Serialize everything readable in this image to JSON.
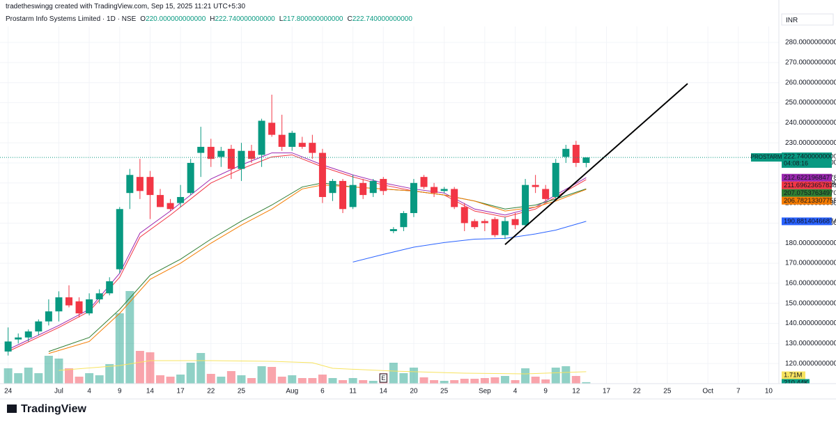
{
  "header": {
    "credit": "tradetheswingg created with TradingView.com, Sep 15, 2025 11:21 UTC+5:30",
    "symbol": "Prostarm Info Systems Limited · 1D · NSE",
    "ohlc": [
      {
        "key": "O",
        "value": "220.000000000000"
      },
      {
        "key": "H",
        "value": "222.740000000000"
      },
      {
        "key": "L",
        "value": "217.800000000000"
      },
      {
        "key": "C",
        "value": "222.740000000000"
      }
    ]
  },
  "currency": "INR",
  "logo": "TradingView",
  "earnings_marker": {
    "x": 37,
    "label": "E"
  },
  "chart_data": {
    "type": "candlestick",
    "ylim": [
      110,
      288
    ],
    "xlim": [
      -0.8,
      76
    ],
    "yticks": [
      {
        "value": 120,
        "label": "120.000000000000"
      },
      {
        "value": 130,
        "label": "130.000000000000"
      },
      {
        "value": 140,
        "label": "140.000000000000"
      },
      {
        "value": 150,
        "label": "150.000000000000"
      },
      {
        "value": 160,
        "label": "160.000000000000"
      },
      {
        "value": 170,
        "label": "170.000000000000"
      },
      {
        "value": 180,
        "label": "180.000000000000"
      },
      {
        "value": 190,
        "label": "190.000000000000"
      },
      {
        "value": 200,
        "label": "200.000000000000"
      },
      {
        "value": 210,
        "label": "210.000000000000"
      },
      {
        "value": 220,
        "label": "220.000000000000"
      },
      {
        "value": 230,
        "label": "230.000000000000"
      },
      {
        "value": 240,
        "label": "240.000000000000"
      },
      {
        "value": 250,
        "label": "250.000000000000"
      },
      {
        "value": 260,
        "label": "260.000000000000"
      },
      {
        "value": 270,
        "label": "270.000000000000"
      },
      {
        "value": 280,
        "label": "280.000000000000"
      }
    ],
    "xticks": [
      {
        "value": 0,
        "label": "24"
      },
      {
        "value": 5,
        "label": "Jul"
      },
      {
        "value": 8,
        "label": "4"
      },
      {
        "value": 11,
        "label": "9"
      },
      {
        "value": 14,
        "label": "14"
      },
      {
        "value": 17,
        "label": "17"
      },
      {
        "value": 20,
        "label": "22"
      },
      {
        "value": 23,
        "label": "25"
      },
      {
        "value": 28,
        "label": "Aug"
      },
      {
        "value": 31,
        "label": "6"
      },
      {
        "value": 34,
        "label": "11"
      },
      {
        "value": 37,
        "label": "14"
      },
      {
        "value": 40,
        "label": "20"
      },
      {
        "value": 43,
        "label": "25"
      },
      {
        "value": 47,
        "label": "Sep"
      },
      {
        "value": 50,
        "label": "4"
      },
      {
        "value": 53,
        "label": "9"
      },
      {
        "value": 56,
        "label": "12"
      },
      {
        "value": 59,
        "label": "17"
      },
      {
        "value": 62,
        "label": "22"
      },
      {
        "value": 65,
        "label": "25"
      },
      {
        "value": 69,
        "label": "Oct"
      },
      {
        "value": 72,
        "label": "7"
      },
      {
        "value": 75,
        "label": "10"
      }
    ],
    "grid": true,
    "up_color": "#089981",
    "down_color": "#f23645",
    "candles": {
      "open": [
        126,
        132,
        133,
        136,
        141,
        146,
        153,
        151,
        145,
        152,
        155,
        167,
        205,
        213,
        213,
        204,
        200,
        200,
        205,
        225,
        228,
        223,
        227,
        217,
        226,
        224,
        240,
        234,
        228,
        230,
        230,
        225,
        205,
        211,
        198,
        210,
        205,
        212,
        186,
        188,
        195,
        213,
        208,
        206,
        207,
        198,
        191,
        191,
        192,
        184,
        192,
        189,
        209,
        207,
        203,
        223,
        229,
        220
      ],
      "high": [
        138,
        135,
        137,
        142,
        152,
        156,
        159,
        153,
        155,
        157,
        163,
        198,
        217,
        222,
        216,
        207,
        202,
        209,
        222,
        238,
        232,
        228,
        229,
        230,
        229,
        242,
        254,
        244,
        236,
        233,
        234,
        227,
        212,
        212,
        214,
        212,
        212,
        213,
        188,
        196,
        212,
        214,
        210,
        208,
        208,
        200,
        192,
        192,
        193,
        193,
        195,
        212,
        214,
        209,
        222,
        229,
        231,
        222.74
      ],
      "low": [
        124,
        130,
        131,
        134,
        139,
        141,
        148,
        143,
        144,
        150,
        154,
        165,
        197,
        202,
        192,
        198,
        196,
        198,
        204,
        213,
        218,
        218,
        212,
        211,
        220,
        218,
        233,
        226,
        226,
        227,
        222,
        200,
        201,
        195,
        197,
        202,
        203,
        204,
        185,
        186,
        193,
        207,
        203,
        205,
        197,
        186,
        187,
        186,
        183,
        182,
        187,
        188,
        205,
        201,
        202,
        220,
        218,
        217.8
      ],
      "close": [
        131,
        133,
        136,
        141,
        146,
        153,
        149,
        145,
        152,
        155,
        161,
        197,
        214,
        206,
        204,
        198,
        197,
        203,
        220,
        228,
        222,
        226,
        217,
        226,
        222,
        241,
        234,
        228,
        235,
        228,
        225,
        203,
        211,
        197,
        209,
        204,
        211,
        206,
        187,
        195,
        210,
        208,
        205,
        207,
        198,
        190,
        188,
        190,
        184,
        191,
        189,
        209,
        208,
        202,
        220,
        227,
        220,
        222.74
      ]
    },
    "last_price": {
      "name": "PROSTARM",
      "label": "222.74000000000",
      "countdown": "04:08:16"
    },
    "moving_averages": [
      {
        "color": "#9c27b0",
        "x": [
          0,
          5,
          8,
          11,
          13,
          16,
          20,
          23,
          26,
          28,
          31,
          34,
          37,
          40,
          43,
          46,
          49,
          52,
          54,
          57
        ],
        "values": [
          127,
          139,
          147,
          165,
          185,
          196,
          212,
          219,
          225,
          225,
          219,
          214,
          210,
          207,
          205,
          197,
          194,
          198,
          204,
          212.62219684778
        ],
        "last_label": "212.62219684778"
      },
      {
        "color": "#f23645",
        "x": [
          0,
          5,
          8,
          11,
          13,
          16,
          20,
          23,
          26,
          28,
          31,
          34,
          37,
          40,
          43,
          46,
          49,
          52,
          54,
          57
        ],
        "values": [
          126,
          138,
          146,
          163,
          183,
          194,
          210,
          217,
          223,
          224,
          218,
          213,
          209,
          206,
          204,
          196,
          193,
          197,
          203,
          211.69623657838
        ],
        "last_label": "211.69623657838"
      },
      {
        "color": "#2e7d32",
        "x": [
          4,
          8,
          11,
          14,
          17,
          20,
          23,
          26,
          29,
          31,
          34,
          37,
          40,
          43,
          46,
          49,
          52,
          54,
          57
        ],
        "values": [
          126,
          133,
          147,
          164,
          172,
          182,
          191,
          199,
          208,
          210,
          208,
          207,
          206,
          204,
          201,
          197,
          199,
          202,
          207.0753763497
        ],
        "last_label": "207.07537634970"
      },
      {
        "color": "#f57c00",
        "x": [
          4,
          8,
          11,
          14,
          17,
          20,
          23,
          26,
          29,
          31,
          34,
          37,
          40,
          43,
          46,
          49,
          52,
          54,
          57
        ],
        "values": [
          125,
          131,
          145,
          162,
          170,
          180,
          189,
          197,
          207,
          209,
          208,
          207,
          206,
          204,
          201,
          196,
          198,
          201,
          206.78213307755
        ],
        "last_label": "206.78213307755"
      },
      {
        "color": "#2962ff",
        "x": [
          34,
          37,
          40,
          43,
          46,
          49,
          52,
          54,
          57
        ],
        "values": [
          170.6,
          174.4,
          178,
          180.3,
          182,
          182.4,
          184.6,
          186.5,
          190.88140466874
        ],
        "last_label": "190.88140466874"
      }
    ],
    "trendline": {
      "x": [
        49,
        67
      ],
      "y": [
        179.3,
        259.5
      ],
      "color": "#000000"
    },
    "volume": {
      "ylim": [
        0,
        30
      ],
      "values": [
        2.2,
        1.5,
        2.3,
        1.5,
        4.0,
        3.6,
        2.2,
        1.0,
        1.5,
        1.2,
        2.8,
        10.1,
        13.3,
        4.7,
        4.5,
        1.2,
        1.0,
        1.3,
        3.0,
        4.4,
        1.4,
        1.0,
        1.8,
        1.2,
        0.8,
        2.5,
        2.4,
        1.0,
        1.2,
        0.8,
        0.8,
        1.3,
        0.8,
        0.5,
        0.8,
        0.5,
        0.4,
        1.5,
        3.0,
        1.5,
        2.3,
        0.9,
        0.5,
        0.4,
        0.5,
        0.7,
        0.7,
        0.8,
        0.9,
        1.1,
        0.5,
        2.2,
        1.0,
        0.6,
        2.3,
        2.5,
        1.1,
        0.21044
      ],
      "last_label": "210.44K",
      "ma": {
        "color": "#f7e35f",
        "x": [
          5,
          11,
          14,
          20,
          26,
          30,
          32,
          38,
          45,
          51,
          57
        ],
        "values": [
          1.9,
          2.6,
          3.3,
          3.3,
          3.2,
          3.0,
          2.2,
          1.8,
          1.5,
          1.4,
          1.71
        ],
        "last_label": "1.71M"
      }
    }
  }
}
